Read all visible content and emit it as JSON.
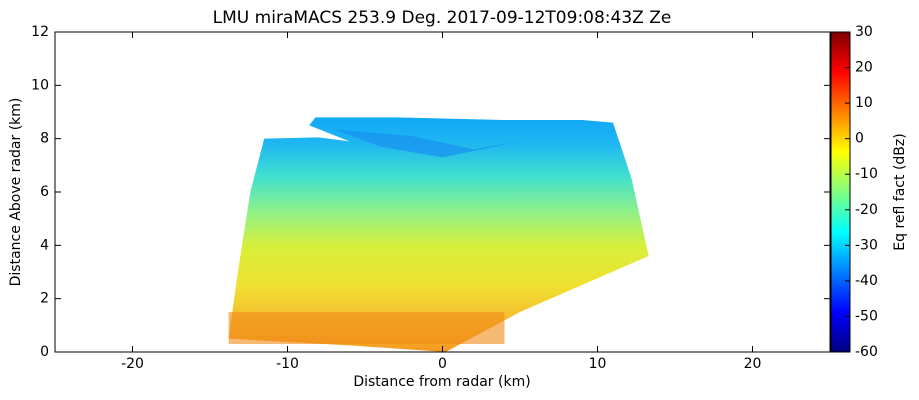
{
  "chart_data": {
    "type": "heatmap",
    "title": "LMU miraMACS 253.9 Deg. 2017-09-12T09:08:43Z  Ze",
    "xlabel": "Distance from radar (km)",
    "ylabel": "Distance Above radar  (km)",
    "xlim": [
      -25,
      25
    ],
    "xticks": [
      -20,
      -10,
      0,
      10,
      20
    ],
    "ylim": [
      0,
      12
    ],
    "yticks": [
      0,
      2,
      4,
      6,
      8,
      10,
      12
    ],
    "colorbar": {
      "label": "Eq refl fact (dBz)",
      "lim": [
        -60,
        30
      ],
      "ticks": [
        -60,
        -50,
        -40,
        -30,
        -20,
        -10,
        0,
        10,
        20,
        30
      ],
      "colormap": [
        "#00007f",
        "#0000ff",
        "#0080ff",
        "#00ffff",
        "#80ff80",
        "#ffff00",
        "#ff8000",
        "#ff0000",
        "#7f0000"
      ]
    }
  }
}
